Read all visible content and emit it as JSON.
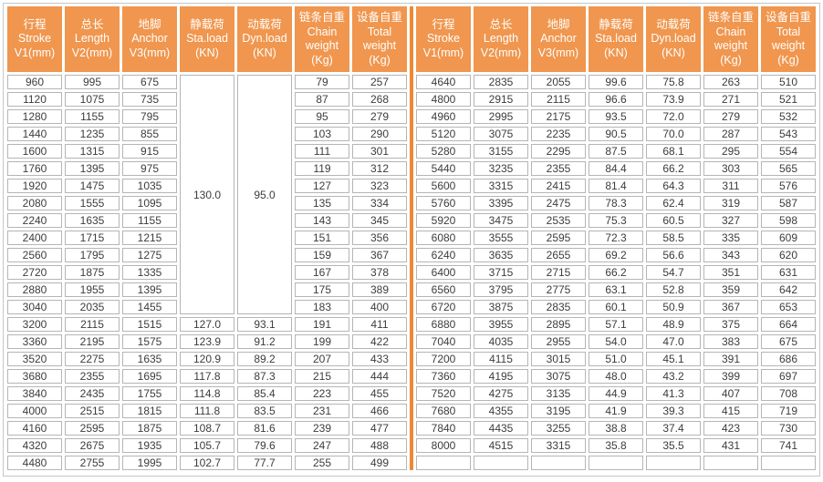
{
  "colors": {
    "header_bg": "#F0964E",
    "header_text": "#FFFFFF",
    "divider_orange": "#ED8A33",
    "cell_border": "#B5B5B5",
    "data_text": "#3C3C3C",
    "outer_border": "#C6C6C6"
  },
  "table": {
    "columns": [
      {
        "key": "stroke",
        "lines": [
          "行程",
          "Stroke",
          "V1(mm)"
        ]
      },
      {
        "key": "length",
        "lines": [
          "总长",
          "Length",
          "V2(mm)"
        ]
      },
      {
        "key": "anchor",
        "lines": [
          "地脚",
          "Anchor",
          "V3(mm)"
        ]
      },
      {
        "key": "static-load",
        "lines": [
          "静载荷",
          "Sta.load",
          "(KN)"
        ]
      },
      {
        "key": "dynamic-load",
        "lines": [
          "动载荷",
          "Dyn.load",
          "(KN)"
        ]
      },
      {
        "key": "chain-weight",
        "lines": [
          "链条自重",
          "Chain",
          "weight",
          "(Kg)"
        ]
      },
      {
        "key": "total-weight",
        "lines": [
          "设备自重",
          "Total",
          "weight",
          "(Kg)"
        ]
      }
    ],
    "left": {
      "merged": {
        "static_load": "130.0",
        "dynamic_load": "95.0",
        "rowspan": 14
      },
      "rows": [
        [
          "960",
          "995",
          "675",
          "",
          "",
          "79",
          "257"
        ],
        [
          "1120",
          "1075",
          "735",
          "",
          "",
          "87",
          "268"
        ],
        [
          "1280",
          "1155",
          "795",
          "",
          "",
          "95",
          "279"
        ],
        [
          "1440",
          "1235",
          "855",
          "",
          "",
          "103",
          "290"
        ],
        [
          "1600",
          "1315",
          "915",
          "",
          "",
          "111",
          "301"
        ],
        [
          "1760",
          "1395",
          "975",
          "",
          "",
          "119",
          "312"
        ],
        [
          "1920",
          "1475",
          "1035",
          "",
          "",
          "127",
          "323"
        ],
        [
          "2080",
          "1555",
          "1095",
          "",
          "",
          "135",
          "334"
        ],
        [
          "2240",
          "1635",
          "1155",
          "",
          "",
          "143",
          "345"
        ],
        [
          "2400",
          "1715",
          "1215",
          "",
          "",
          "151",
          "356"
        ],
        [
          "2560",
          "1795",
          "1275",
          "",
          "",
          "159",
          "367"
        ],
        [
          "2720",
          "1875",
          "1335",
          "",
          "",
          "167",
          "378"
        ],
        [
          "2880",
          "1955",
          "1395",
          "",
          "",
          "175",
          "389"
        ],
        [
          "3040",
          "2035",
          "1455",
          "",
          "",
          "183",
          "400"
        ],
        [
          "3200",
          "2115",
          "1515",
          "127.0",
          "93.1",
          "191",
          "411"
        ],
        [
          "3360",
          "2195",
          "1575",
          "123.9",
          "91.2",
          "199",
          "422"
        ],
        [
          "3520",
          "2275",
          "1635",
          "120.9",
          "89.2",
          "207",
          "433"
        ],
        [
          "3680",
          "2355",
          "1695",
          "117.8",
          "87.3",
          "215",
          "444"
        ],
        [
          "3840",
          "2435",
          "1755",
          "114.8",
          "85.4",
          "223",
          "455"
        ],
        [
          "4000",
          "2515",
          "1815",
          "111.8",
          "83.5",
          "231",
          "466"
        ],
        [
          "4160",
          "2595",
          "1875",
          "108.7",
          "81.6",
          "239",
          "477"
        ],
        [
          "4320",
          "2675",
          "1935",
          "105.7",
          "79.6",
          "247",
          "488"
        ],
        [
          "4480",
          "2755",
          "1995",
          "102.7",
          "77.7",
          "255",
          "499"
        ]
      ]
    },
    "right": {
      "rows": [
        [
          "4640",
          "2835",
          "2055",
          "99.6",
          "75.8",
          "263",
          "510"
        ],
        [
          "4800",
          "2915",
          "2115",
          "96.6",
          "73.9",
          "271",
          "521"
        ],
        [
          "4960",
          "2995",
          "2175",
          "93.5",
          "72.0",
          "279",
          "532"
        ],
        [
          "5120",
          "3075",
          "2235",
          "90.5",
          "70.0",
          "287",
          "543"
        ],
        [
          "5280",
          "3155",
          "2295",
          "87.5",
          "68.1",
          "295",
          "554"
        ],
        [
          "5440",
          "3235",
          "2355",
          "84.4",
          "66.2",
          "303",
          "565"
        ],
        [
          "5600",
          "3315",
          "2415",
          "81.4",
          "64.3",
          "311",
          "576"
        ],
        [
          "5760",
          "3395",
          "2475",
          "78.3",
          "62.4",
          "319",
          "587"
        ],
        [
          "5920",
          "3475",
          "2535",
          "75.3",
          "60.5",
          "327",
          "598"
        ],
        [
          "6080",
          "3555",
          "2595",
          "72.3",
          "58.5",
          "335",
          "609"
        ],
        [
          "6240",
          "3635",
          "2655",
          "69.2",
          "56.6",
          "343",
          "620"
        ],
        [
          "6400",
          "3715",
          "2715",
          "66.2",
          "54.7",
          "351",
          "631"
        ],
        [
          "6560",
          "3795",
          "2775",
          "63.1",
          "52.8",
          "359",
          "642"
        ],
        [
          "6720",
          "3875",
          "2835",
          "60.1",
          "50.9",
          "367",
          "653"
        ],
        [
          "6880",
          "3955",
          "2895",
          "57.1",
          "48.9",
          "375",
          "664"
        ],
        [
          "7040",
          "4035",
          "2955",
          "54.0",
          "47.0",
          "383",
          "675"
        ],
        [
          "7200",
          "4115",
          "3015",
          "51.0",
          "45.1",
          "391",
          "686"
        ],
        [
          "7360",
          "4195",
          "3075",
          "48.0",
          "43.2",
          "399",
          "697"
        ],
        [
          "7520",
          "4275",
          "3135",
          "44.9",
          "41.3",
          "407",
          "708"
        ],
        [
          "7680",
          "4355",
          "3195",
          "41.9",
          "39.3",
          "415",
          "719"
        ],
        [
          "7840",
          "4435",
          "3255",
          "38.8",
          "37.4",
          "423",
          "730"
        ],
        [
          "8000",
          "4515",
          "3315",
          "35.8",
          "35.5",
          "431",
          "741"
        ],
        [
          "",
          "",
          "",
          "",
          "",
          "",
          ""
        ]
      ]
    }
  }
}
